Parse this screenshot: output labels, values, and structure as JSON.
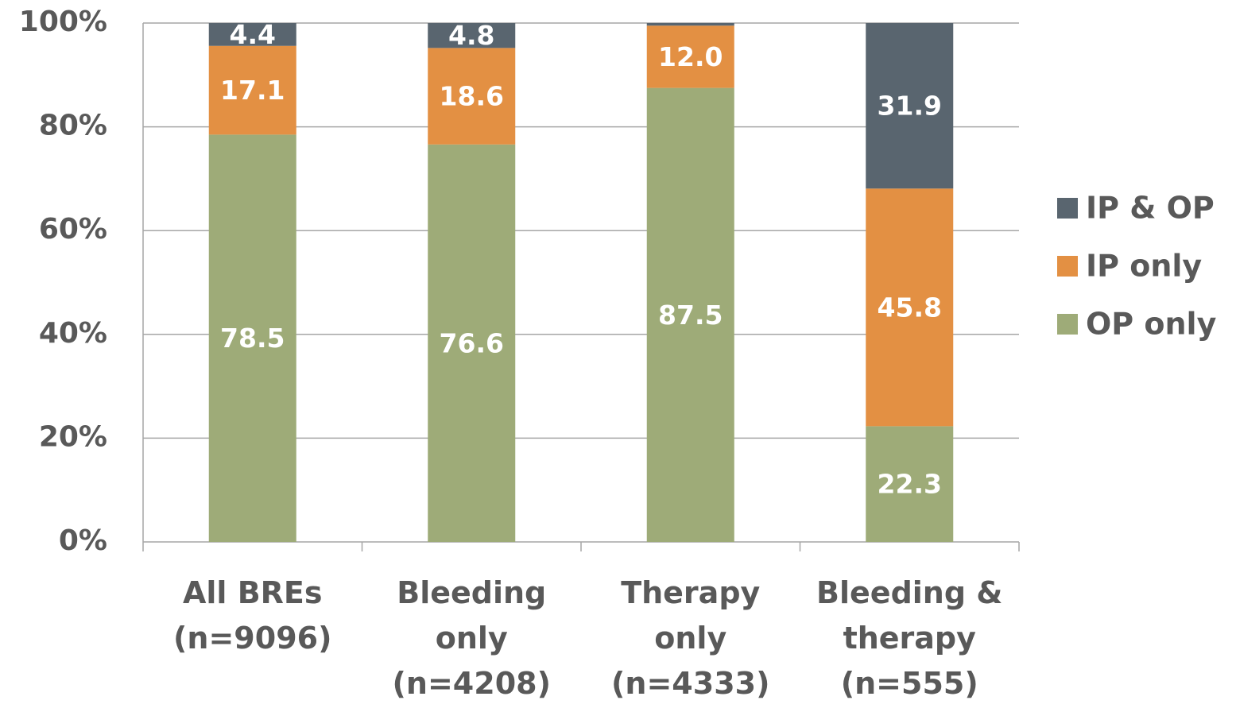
{
  "chart_data": {
    "type": "stacked_bar",
    "categories": [
      [
        "All BREs",
        "(n=9096)"
      ],
      [
        "Bleeding",
        "only",
        "(n=4208)"
      ],
      [
        "Therapy",
        "only",
        "(n=4333)"
      ],
      [
        "Bleeding &",
        "therapy",
        "(n=555)"
      ]
    ],
    "series": [
      {
        "name": "OP only",
        "color": "#9eab78",
        "values": [
          78.5,
          76.6,
          87.5,
          22.3
        ]
      },
      {
        "name": "IP only",
        "color": "#e39043",
        "values": [
          17.1,
          18.6,
          12.0,
          45.8
        ],
        "value_labels": [
          "17.1",
          "18.6",
          "12.0",
          "45.8"
        ]
      },
      {
        "name": "IP & OP",
        "color": "#59656f",
        "values": [
          4.4,
          4.8,
          0.5,
          31.9
        ],
        "value_labels": [
          "4.4",
          "4.8",
          null,
          "31.9"
        ]
      }
    ],
    "ylim": [
      0,
      100
    ],
    "yticks": [
      {
        "value": 0,
        "label": "0%"
      },
      {
        "value": 20,
        "label": "20%"
      },
      {
        "value": 40,
        "label": "40%"
      },
      {
        "value": 60,
        "label": "60%"
      },
      {
        "value": 80,
        "label": "80%"
      },
      {
        "value": 100,
        "label": "100%"
      }
    ],
    "grid": true,
    "legend": "right"
  }
}
